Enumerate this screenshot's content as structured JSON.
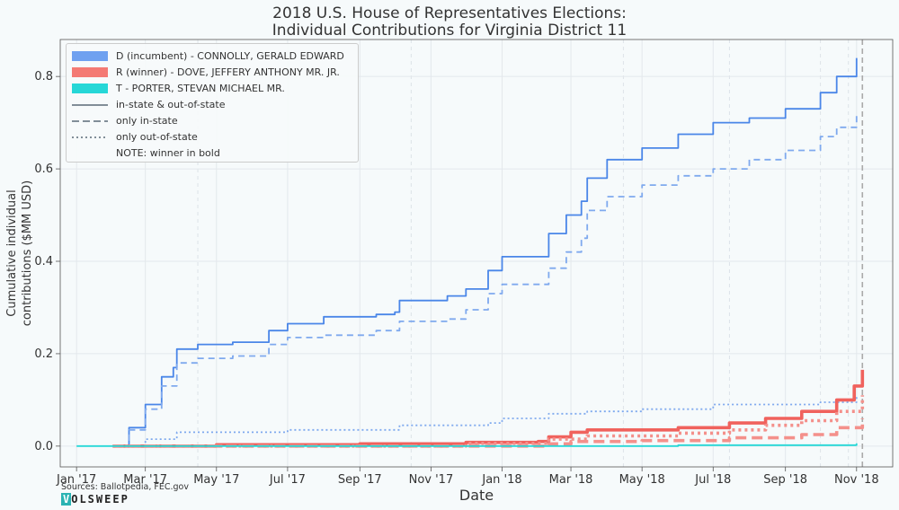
{
  "title_line1": "2018 U.S. House of Representatives Elections:",
  "title_line2": "Individual Contributions for Virginia District 11",
  "legend": {
    "d_label": "D (incumbent) - CONNOLLY, GERALD EDWARD",
    "r_label": "R (winner) - DOVE, JEFFERY ANTHONY MR. JR.",
    "t_label": "T - PORTER, STEVAN MICHAEL MR.",
    "solid_label": "in-state & out-of-state",
    "dash_label": "only in-state",
    "dot_label": "only out-of-state",
    "note": "NOTE: winner in bold"
  },
  "footer": {
    "sources": "Sources: Ballotpedia, FEC.gov",
    "logo_v": "V",
    "logo_rest": "OLSWEEP"
  },
  "colors": {
    "D": "#4a86e8",
    "D_light": "#7fa9ee",
    "R": "#f0625d",
    "R_light": "#f4908b",
    "T": "#26d7d7"
  },
  "chart_data": {
    "type": "line",
    "xlabel": "Date",
    "ylabel": "Cumulative individual contributions ($MM USD)",
    "x_ticks": [
      "Jan '17",
      "Mar '17",
      "May '17",
      "Jul '17",
      "Sep '17",
      "Nov '17",
      "Jan '18",
      "Mar '18",
      "May '18",
      "Jul '18",
      "Sep '18",
      "Nov '18"
    ],
    "y_ticks": [
      "0.0",
      "0.2",
      "0.4",
      "0.6",
      "0.8"
    ],
    "ylim": [
      -0.045,
      0.88
    ],
    "election_day": "2018-11-06",
    "series": [
      {
        "name": "D (incumbent) - CONNOLLY, GERALD EDWARD",
        "scope": "in-state & out-of-state",
        "points": [
          [
            "2017-02-01",
            0.0
          ],
          [
            "2017-02-15",
            0.04
          ],
          [
            "2017-03-01",
            0.09
          ],
          [
            "2017-03-15",
            0.15
          ],
          [
            "2017-03-25",
            0.17
          ],
          [
            "2017-03-28",
            0.21
          ],
          [
            "2017-04-15",
            0.22
          ],
          [
            "2017-05-15",
            0.225
          ],
          [
            "2017-06-15",
            0.25
          ],
          [
            "2017-07-01",
            0.265
          ],
          [
            "2017-08-01",
            0.28
          ],
          [
            "2017-09-15",
            0.285
          ],
          [
            "2017-10-01",
            0.29
          ],
          [
            "2017-10-05",
            0.315
          ],
          [
            "2017-11-15",
            0.325
          ],
          [
            "2017-12-01",
            0.34
          ],
          [
            "2017-12-20",
            0.38
          ],
          [
            "2018-01-01",
            0.41
          ],
          [
            "2018-02-05",
            0.41
          ],
          [
            "2018-02-10",
            0.46
          ],
          [
            "2018-02-25",
            0.5
          ],
          [
            "2018-03-10",
            0.53
          ],
          [
            "2018-03-15",
            0.58
          ],
          [
            "2018-04-01",
            0.62
          ],
          [
            "2018-05-01",
            0.645
          ],
          [
            "2018-06-01",
            0.675
          ],
          [
            "2018-07-01",
            0.7
          ],
          [
            "2018-08-01",
            0.71
          ],
          [
            "2018-09-01",
            0.73
          ],
          [
            "2018-10-01",
            0.765
          ],
          [
            "2018-10-15",
            0.8
          ],
          [
            "2018-11-01",
            0.84
          ]
        ]
      },
      {
        "name": "D (incumbent) - CONNOLLY, GERALD EDWARD",
        "scope": "only in-state",
        "points": [
          [
            "2017-02-01",
            0.0
          ],
          [
            "2017-02-15",
            0.035
          ],
          [
            "2017-03-01",
            0.08
          ],
          [
            "2017-03-15",
            0.13
          ],
          [
            "2017-03-28",
            0.18
          ],
          [
            "2017-04-15",
            0.19
          ],
          [
            "2017-05-15",
            0.195
          ],
          [
            "2017-06-15",
            0.22
          ],
          [
            "2017-07-01",
            0.235
          ],
          [
            "2017-08-01",
            0.24
          ],
          [
            "2017-09-15",
            0.25
          ],
          [
            "2017-10-05",
            0.27
          ],
          [
            "2017-11-15",
            0.275
          ],
          [
            "2017-12-01",
            0.295
          ],
          [
            "2017-12-20",
            0.33
          ],
          [
            "2018-01-01",
            0.35
          ],
          [
            "2018-02-05",
            0.35
          ],
          [
            "2018-02-10",
            0.385
          ],
          [
            "2018-02-25",
            0.42
          ],
          [
            "2018-03-10",
            0.45
          ],
          [
            "2018-03-15",
            0.51
          ],
          [
            "2018-04-01",
            0.54
          ],
          [
            "2018-05-01",
            0.565
          ],
          [
            "2018-06-01",
            0.585
          ],
          [
            "2018-07-01",
            0.6
          ],
          [
            "2018-08-01",
            0.62
          ],
          [
            "2018-09-01",
            0.64
          ],
          [
            "2018-10-01",
            0.67
          ],
          [
            "2018-10-15",
            0.69
          ],
          [
            "2018-11-01",
            0.72
          ]
        ]
      },
      {
        "name": "D (incumbent) - CONNOLLY, GERALD EDWARD",
        "scope": "only out-of-state",
        "points": [
          [
            "2017-02-01",
            0.0
          ],
          [
            "2017-03-01",
            0.015
          ],
          [
            "2017-03-28",
            0.03
          ],
          [
            "2017-07-01",
            0.035
          ],
          [
            "2017-10-05",
            0.045
          ],
          [
            "2017-12-20",
            0.05
          ],
          [
            "2018-01-01",
            0.06
          ],
          [
            "2018-02-10",
            0.07
          ],
          [
            "2018-03-15",
            0.075
          ],
          [
            "2018-05-01",
            0.08
          ],
          [
            "2018-07-01",
            0.09
          ],
          [
            "2018-10-01",
            0.095
          ],
          [
            "2018-11-01",
            0.11
          ]
        ]
      },
      {
        "name": "R (winner) - DOVE, JEFFERY ANTHONY MR. JR.",
        "scope": "in-state & out-of-state",
        "points": [
          [
            "2017-02-01",
            0.0
          ],
          [
            "2017-05-01",
            0.003
          ],
          [
            "2017-09-01",
            0.005
          ],
          [
            "2017-12-01",
            0.008
          ],
          [
            "2018-02-01",
            0.01
          ],
          [
            "2018-02-10",
            0.02
          ],
          [
            "2018-03-01",
            0.03
          ],
          [
            "2018-03-15",
            0.035
          ],
          [
            "2018-06-01",
            0.04
          ],
          [
            "2018-07-15",
            0.05
          ],
          [
            "2018-08-15",
            0.06
          ],
          [
            "2018-09-15",
            0.075
          ],
          [
            "2018-10-15",
            0.1
          ],
          [
            "2018-10-30",
            0.13
          ],
          [
            "2018-11-06",
            0.165
          ]
        ]
      },
      {
        "name": "R (winner) - DOVE, JEFFERY ANTHONY MR. JR.",
        "scope": "only in-state",
        "points": [
          [
            "2017-02-01",
            0.0
          ],
          [
            "2017-12-01",
            0.0
          ],
          [
            "2018-02-10",
            0.005
          ],
          [
            "2018-03-01",
            0.01
          ],
          [
            "2018-05-01",
            0.012
          ],
          [
            "2018-07-15",
            0.018
          ],
          [
            "2018-09-15",
            0.025
          ],
          [
            "2018-10-15",
            0.04
          ],
          [
            "2018-11-06",
            0.06
          ]
        ]
      },
      {
        "name": "R (winner) - DOVE, JEFFERY ANTHONY MR. JR.",
        "scope": "only out-of-state",
        "points": [
          [
            "2017-02-01",
            0.0
          ],
          [
            "2017-12-01",
            0.006
          ],
          [
            "2018-02-10",
            0.015
          ],
          [
            "2018-03-15",
            0.022
          ],
          [
            "2018-06-01",
            0.028
          ],
          [
            "2018-07-15",
            0.035
          ],
          [
            "2018-08-15",
            0.045
          ],
          [
            "2018-09-15",
            0.055
          ],
          [
            "2018-10-15",
            0.075
          ],
          [
            "2018-11-06",
            0.11
          ]
        ]
      },
      {
        "name": "T - PORTER, STEVAN MICHAEL MR.",
        "scope": "in-state & out-of-state",
        "points": [
          [
            "2017-01-01",
            0.0
          ],
          [
            "2018-06-01",
            0.002
          ],
          [
            "2018-11-01",
            0.006
          ]
        ]
      }
    ]
  }
}
